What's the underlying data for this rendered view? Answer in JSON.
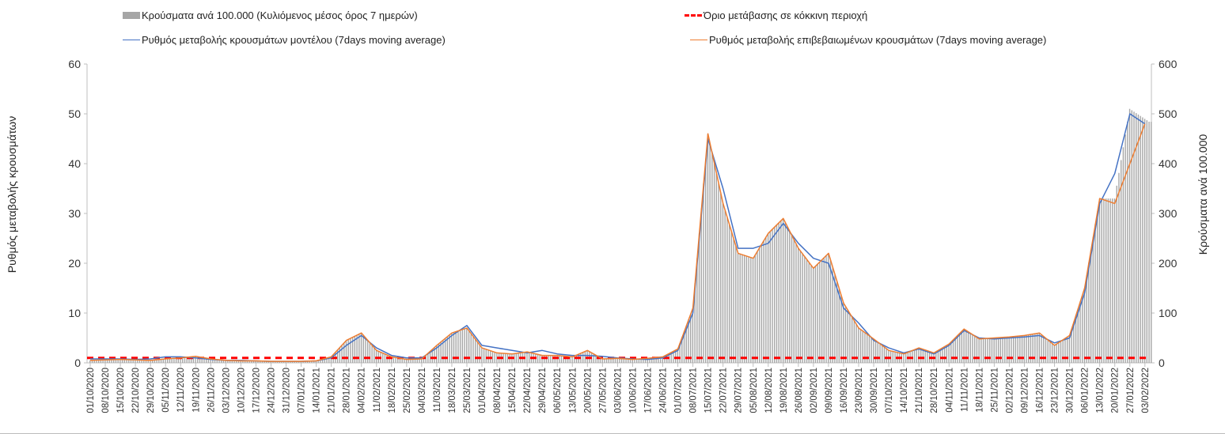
{
  "chart_data": {
    "type": "bar+line",
    "legend": {
      "bars": "Κρούσματα ανά 100.000 (Κυλιόμενος μέσος όρος 7 ημερών)",
      "threshold": "Όριο μετάβασης σε κόκκινη περιοχή",
      "model": "Ρυθμός μεταβολής κρουσμάτων μοντέλου (7days moving average)",
      "confirmed": "Ρυθμός μεταβολής επιβεβαιωμένων κρουσμάτων (7days moving average)"
    },
    "ylabel_left": "Ρυθμός μεταβολής κρουσμάτων",
    "ylabel_right": "Κρούσματα ανά 100.000",
    "ylim_left": [
      0,
      60
    ],
    "ylim_right": [
      0,
      600
    ],
    "yticks_left": [
      "0",
      "10",
      "20",
      "30",
      "40",
      "50",
      "60"
    ],
    "yticks_right": [
      "0",
      "100",
      "200",
      "300",
      "400",
      "500",
      "600"
    ],
    "threshold_right": 10,
    "colors": {
      "bars": "#a6a6a6",
      "threshold": "#ff0000",
      "model": "#4472c4",
      "confirmed": "#ed7d31"
    },
    "categories": [
      "01/10/2020",
      "08/10/2020",
      "15/10/2020",
      "22/10/2020",
      "29/10/2020",
      "05/11/2020",
      "12/11/2020",
      "19/11/2020",
      "26/11/2020",
      "03/12/2020",
      "10/12/2020",
      "17/12/2020",
      "24/12/2020",
      "31/12/2020",
      "07/01/2021",
      "14/01/2021",
      "21/01/2021",
      "28/01/2021",
      "04/02/2021",
      "11/02/2021",
      "18/02/2021",
      "25/02/2021",
      "04/03/2021",
      "11/03/2021",
      "18/03/2021",
      "25/03/2021",
      "01/04/2021",
      "08/04/2021",
      "15/04/2021",
      "22/04/2021",
      "29/04/2021",
      "06/05/2021",
      "13/05/2021",
      "20/05/2021",
      "27/05/2021",
      "03/06/2021",
      "10/06/2021",
      "17/06/2021",
      "24/06/2021",
      "01/07/2021",
      "08/07/2021",
      "15/07/2021",
      "22/07/2021",
      "29/07/2021",
      "05/08/2021",
      "12/08/2021",
      "19/08/2021",
      "26/08/2021",
      "02/09/2021",
      "09/09/2021",
      "16/09/2021",
      "23/09/2021",
      "30/09/2021",
      "07/10/2021",
      "14/10/2021",
      "21/10/2021",
      "28/10/2021",
      "04/11/2021",
      "11/11/2021",
      "18/11/2021",
      "25/11/2021",
      "02/12/2021",
      "09/12/2021",
      "16/12/2021",
      "23/12/2021",
      "30/12/2021",
      "06/01/2022",
      "13/01/2022",
      "20/01/2022",
      "27/01/2022",
      "03/02/2022"
    ],
    "series": [
      {
        "name": "model",
        "axis": "left",
        "values": [
          0.8,
          0.8,
          0.8,
          0.7,
          0.8,
          1.2,
          1.2,
          1.0,
          0.7,
          0.5,
          0.5,
          0.4,
          0.3,
          0.3,
          0.3,
          0.4,
          1.0,
          3.5,
          5.5,
          3.0,
          1.5,
          1.0,
          1.0,
          3.0,
          5.5,
          7.5,
          3.5,
          3.0,
          2.5,
          2.0,
          2.5,
          1.8,
          1.5,
          1.5,
          1.3,
          1.0,
          0.8,
          0.7,
          1.0,
          2.5,
          10,
          45,
          35,
          23,
          23,
          24,
          28,
          24,
          21,
          20,
          11,
          8,
          4.5,
          3,
          2,
          2.8,
          1.8,
          3.5,
          6.5,
          5,
          4.8,
          5.0,
          5.2,
          5.5,
          4,
          5,
          14,
          32,
          38,
          50,
          48
        ]
      },
      {
        "name": "confirmed",
        "axis": "left",
        "values": [
          0.5,
          0.6,
          0.7,
          0.6,
          0.5,
          0.8,
          1.0,
          1.3,
          0.8,
          0.5,
          0.4,
          0.4,
          0.3,
          0.3,
          0.3,
          0.4,
          1.2,
          4.5,
          6.0,
          2.5,
          1.2,
          0.7,
          0.8,
          3.5,
          6.0,
          7.0,
          3.0,
          2.0,
          1.8,
          2.2,
          1.5,
          1.5,
          1.2,
          2.5,
          0.8,
          0.9,
          0.7,
          0.9,
          1.2,
          2.8,
          11,
          46,
          32,
          22,
          21,
          26,
          29,
          23,
          19,
          22,
          12,
          7,
          4.8,
          2.5,
          1.8,
          3.0,
          2.0,
          3.8,
          6.8,
          4.8,
          5.0,
          5.2,
          5.5,
          6.0,
          3.5,
          5.5,
          15,
          33,
          32,
          40,
          48
        ]
      },
      {
        "name": "bars",
        "axis": "right",
        "values": [
          5,
          6,
          7,
          6,
          5,
          8,
          10,
          12,
          8,
          5,
          4,
          4,
          3,
          3,
          3,
          4,
          12,
          45,
          60,
          25,
          12,
          7,
          8,
          35,
          60,
          70,
          30,
          20,
          18,
          22,
          15,
          15,
          12,
          25,
          8,
          9,
          7,
          9,
          12,
          28,
          110,
          460,
          320,
          220,
          210,
          260,
          290,
          230,
          190,
          220,
          120,
          70,
          48,
          25,
          18,
          30,
          20,
          38,
          68,
          48,
          50,
          52,
          55,
          60,
          35,
          55,
          150,
          330,
          330,
          510,
          490
        ]
      }
    ]
  }
}
